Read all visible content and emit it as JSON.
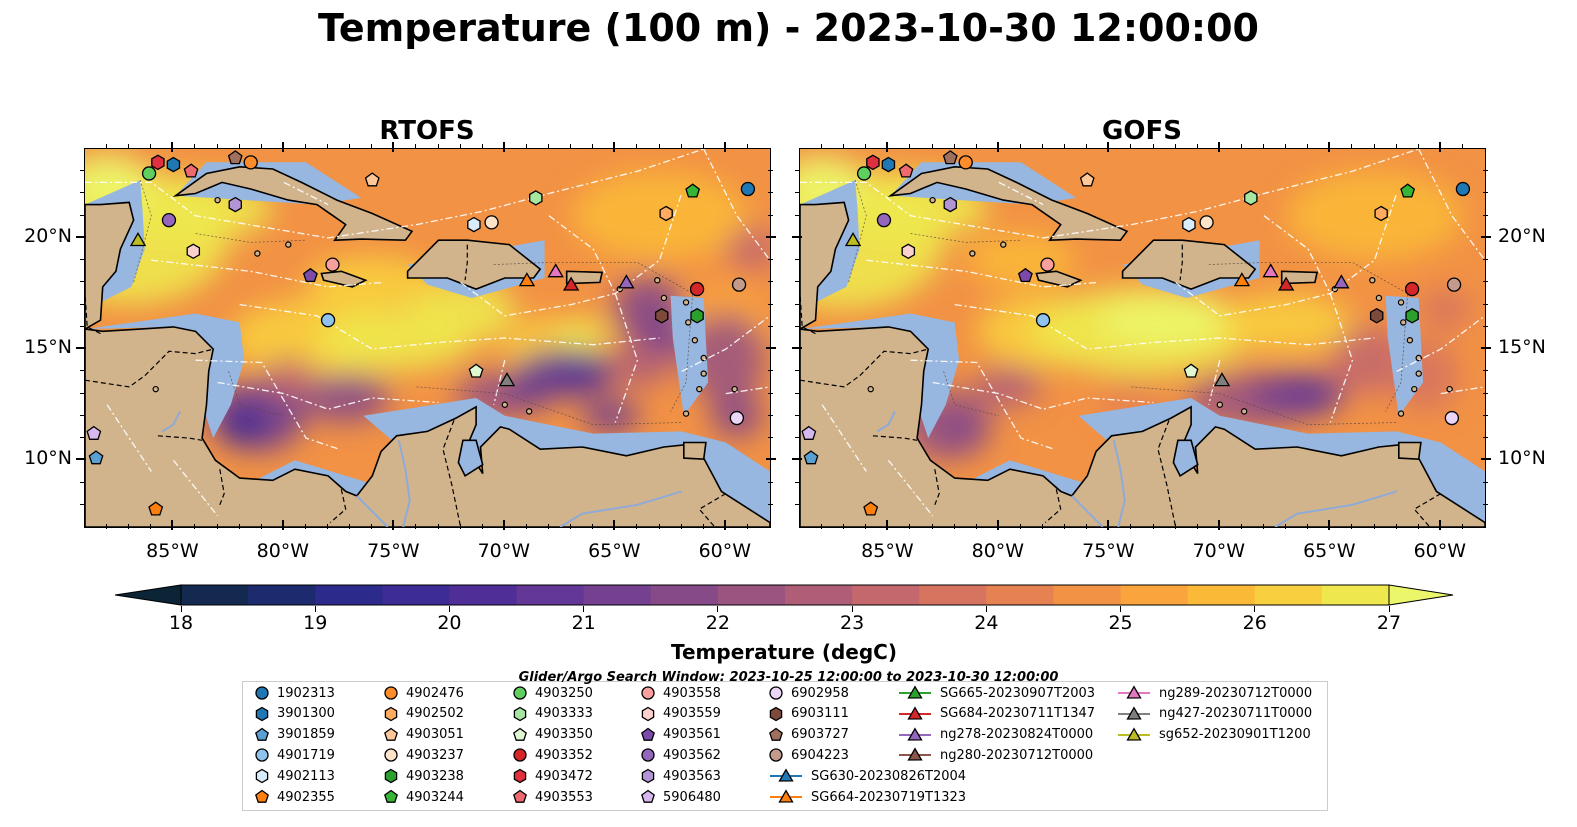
{
  "title": "Temperature (100 m) - 2023-10-30 12:00:00",
  "panels": [
    {
      "title": "RTOFS",
      "model": "rtofs"
    },
    {
      "title": "GOFS",
      "model": "gofs"
    }
  ],
  "map_extent": {
    "lon": [
      -89,
      -58
    ],
    "lat": [
      7,
      24
    ]
  },
  "lon_ticks": [
    {
      "value": -85,
      "label": "85°W"
    },
    {
      "value": -80,
      "label": "80°W"
    },
    {
      "value": -75,
      "label": "75°W"
    },
    {
      "value": -70,
      "label": "70°W"
    },
    {
      "value": -65,
      "label": "65°W"
    },
    {
      "value": -60,
      "label": "60°W"
    }
  ],
  "lat_ticks": [
    {
      "value": 20,
      "label": "20°N"
    },
    {
      "value": 15,
      "label": "15°N"
    },
    {
      "value": 10,
      "label": "10°N"
    }
  ],
  "colorbar": {
    "label": "Temperature (degC)",
    "min": 18,
    "max": 27,
    "step": 0.5,
    "extend": "both",
    "ticks": [
      "18",
      "19",
      "20",
      "21",
      "22",
      "23",
      "24",
      "25",
      "26",
      "27"
    ],
    "colors": [
      "#0b2436",
      "#13294f",
      "#1d2a6e",
      "#2c2a8a",
      "#3d2b96",
      "#4f2e98",
      "#623795",
      "#74408f",
      "#874a88",
      "#9b5480",
      "#b05e78",
      "#c4686d",
      "#d67460",
      "#e68252",
      "#f29245",
      "#f9a43c",
      "#fbb938",
      "#f8cf3e",
      "#eee84e",
      "#ecf66a"
    ]
  },
  "search_window": "Glider/Argo Search Window: 2023-10-25 12:00:00 to 2023-10-30 12:00:00",
  "legend": [
    {
      "label": "1902313",
      "marker": "circle",
      "color": "#1f77b4"
    },
    {
      "label": "3901300",
      "marker": "hexagon",
      "color": "#1f77b4"
    },
    {
      "label": "3901859",
      "marker": "pentagon",
      "color": "#5aa0d2"
    },
    {
      "label": "4901719",
      "marker": "circle",
      "color": "#8fc3ee"
    },
    {
      "label": "4902113",
      "marker": "hexagon",
      "color": "#d8ecfb"
    },
    {
      "label": "4902355",
      "marker": "pentagon",
      "color": "#ff7f0e"
    },
    {
      "label": "4902476",
      "marker": "circle",
      "color": "#ff8c2a"
    },
    {
      "label": "4902502",
      "marker": "hexagon",
      "color": "#ffab60"
    },
    {
      "label": "4903051",
      "marker": "pentagon",
      "color": "#ffc898"
    },
    {
      "label": "4903237",
      "marker": "circle",
      "color": "#ffe3c8"
    },
    {
      "label": "4903238",
      "marker": "hexagon",
      "color": "#2ca02c"
    },
    {
      "label": "4903244",
      "marker": "pentagon",
      "color": "#36b536"
    },
    {
      "label": "4903250",
      "marker": "circle",
      "color": "#5fcf5f"
    },
    {
      "label": "4903333",
      "marker": "hexagon",
      "color": "#a7e6a0"
    },
    {
      "label": "4903350",
      "marker": "pentagon",
      "color": "#e0f8d0"
    },
    {
      "label": "4903352",
      "marker": "circle",
      "color": "#d62728"
    },
    {
      "label": "4903472",
      "marker": "hexagon",
      "color": "#e0303f"
    },
    {
      "label": "4903553",
      "marker": "pentagon",
      "color": "#ef6a6e"
    },
    {
      "label": "4903558",
      "marker": "circle",
      "color": "#f7a09e"
    },
    {
      "label": "4903559",
      "marker": "hexagon",
      "color": "#fcd0cc"
    },
    {
      "label": "4903561",
      "marker": "pentagon",
      "color": "#7b4aaa"
    },
    {
      "label": "4903562",
      "marker": "circle",
      "color": "#9467bd"
    },
    {
      "label": "4903563",
      "marker": "hexagon",
      "color": "#b395d6"
    },
    {
      "label": "5906480",
      "marker": "pentagon",
      "color": "#d5b8ee"
    },
    {
      "label": "6902958",
      "marker": "circle",
      "color": "#ecd6f8"
    },
    {
      "label": "6903111",
      "marker": "hexagon",
      "color": "#7e4a3c"
    },
    {
      "label": "6903727",
      "marker": "pentagon",
      "color": "#a0705e"
    },
    {
      "label": "6904223",
      "marker": "circle",
      "color": "#c49a8c"
    },
    {
      "label": "SG630-20230826T2004",
      "marker": "triangle",
      "color": "#1f77b4"
    },
    {
      "label": "SG664-20230719T1323",
      "marker": "triangle",
      "color": "#ff7f0e"
    },
    {
      "label": "SG665-20230907T2003",
      "marker": "triangle",
      "color": "#2ca02c"
    },
    {
      "label": "SG684-20230711T1347",
      "marker": "triangle",
      "color": "#d62728"
    },
    {
      "label": "ng278-20230824T0000",
      "marker": "triangle",
      "color": "#9467bd"
    },
    {
      "label": "ng280-20230712T0000",
      "marker": "triangle",
      "color": "#8c564b"
    },
    {
      "label": "ng289-20230712T0000",
      "marker": "triangle",
      "color": "#e377c2"
    },
    {
      "label": "ng427-20230711T0000",
      "marker": "triangle",
      "color": "#7f7f7f"
    },
    {
      "label": "sg652-20230901T1200",
      "marker": "triangle",
      "color": "#bcbd22"
    }
  ],
  "markers": [
    {
      "id": "1902313",
      "lon": -59.0,
      "lat": 22.2
    },
    {
      "id": "3901300",
      "lon": -85.0,
      "lat": 23.3
    },
    {
      "id": "3901859",
      "lon": -88.5,
      "lat": 10.1
    },
    {
      "id": "4901719",
      "lon": -78.0,
      "lat": 16.3
    },
    {
      "id": "4902113",
      "lon": -71.4,
      "lat": 20.6
    },
    {
      "id": "4902355",
      "lon": -85.8,
      "lat": 7.8
    },
    {
      "id": "4902476",
      "lon": -81.5,
      "lat": 23.4
    },
    {
      "id": "4902502",
      "lon": -62.7,
      "lat": 21.1
    },
    {
      "id": "4903051",
      "lon": -76.0,
      "lat": 22.6
    },
    {
      "id": "4903237",
      "lon": -70.6,
      "lat": 20.7
    },
    {
      "id": "4903238",
      "lon": -61.3,
      "lat": 16.5
    },
    {
      "id": "4903244",
      "lon": -61.5,
      "lat": 22.1
    },
    {
      "id": "4903250",
      "lon": -86.1,
      "lat": 22.9
    },
    {
      "id": "4903333",
      "lon": -68.6,
      "lat": 21.8
    },
    {
      "id": "4903350",
      "lon": -71.3,
      "lat": 14.0
    },
    {
      "id": "4903352",
      "lon": -61.3,
      "lat": 17.7
    },
    {
      "id": "4903472",
      "lon": -85.7,
      "lat": 23.4
    },
    {
      "id": "4903553",
      "lon": -84.2,
      "lat": 23.0
    },
    {
      "id": "4903558",
      "lon": -77.8,
      "lat": 18.8
    },
    {
      "id": "4903559",
      "lon": -84.1,
      "lat": 19.4
    },
    {
      "id": "4903561",
      "lon": -78.8,
      "lat": 18.3
    },
    {
      "id": "4903562",
      "lon": -85.2,
      "lat": 20.8
    },
    {
      "id": "4903563",
      "lon": -82.2,
      "lat": 21.5
    },
    {
      "id": "5906480",
      "lon": -88.6,
      "lat": 11.2
    },
    {
      "id": "6902958",
      "lon": -59.5,
      "lat": 11.9
    },
    {
      "id": "6903111",
      "lon": -62.9,
      "lat": 16.5
    },
    {
      "id": "6903727",
      "lon": -82.2,
      "lat": 23.6
    },
    {
      "id": "6904223",
      "lon": -59.4,
      "lat": 17.9
    },
    {
      "id": "SG664-20230719T1323",
      "lon": -69.0,
      "lat": 18.1
    },
    {
      "id": "SG684-20230711T1347",
      "lon": -67.0,
      "lat": 17.9
    },
    {
      "id": "ng278-20230824T0000",
      "lon": -64.5,
      "lat": 18.0
    },
    {
      "id": "ng289-20230712T0000",
      "lon": -67.7,
      "lat": 18.5
    },
    {
      "id": "ng427-20230711T0000",
      "lon": -69.9,
      "lat": 13.6
    },
    {
      "id": "sg652-20230901T1200",
      "lon": -86.6,
      "lat": 19.9
    }
  ],
  "colors": {
    "land": "#d2b48c",
    "shelf": "#97b6e0",
    "deep": "#0a2233"
  }
}
